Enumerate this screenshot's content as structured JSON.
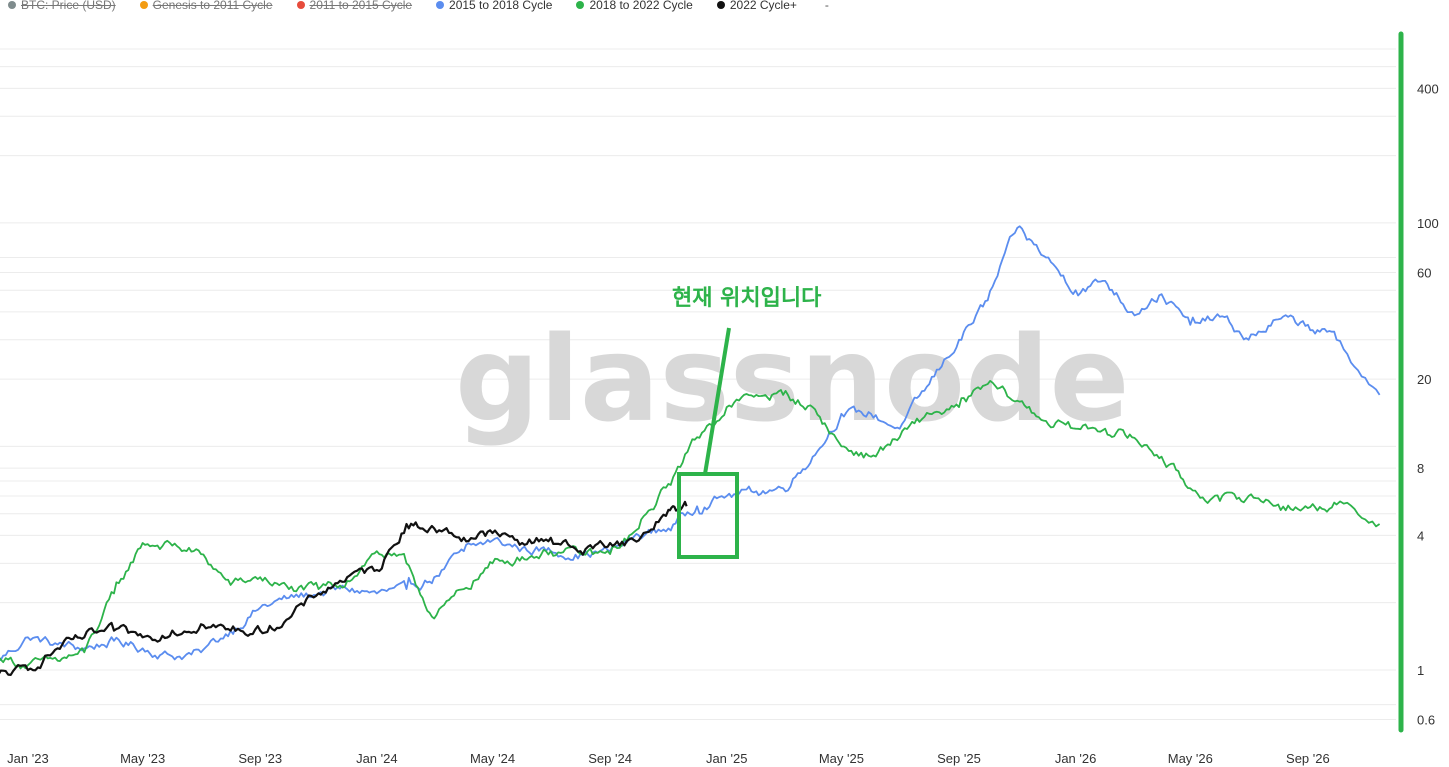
{
  "legend": {
    "items": [
      {
        "label": "BTC: Price (USD)",
        "color": "#7f8c8d",
        "hidden": true
      },
      {
        "label": "Genesis to 2011 Cycle",
        "color": "#f39c12",
        "hidden": true
      },
      {
        "label": "2011 to 2015 Cycle",
        "color": "#e74c3c",
        "hidden": true
      },
      {
        "label": "2015 to 2018 Cycle",
        "color": "#5b8def",
        "hidden": false
      },
      {
        "label": "2018 to 2022 Cycle",
        "color": "#2db34a",
        "hidden": false
      },
      {
        "label": "2022 Cycle+",
        "color": "#111111",
        "hidden": false
      }
    ],
    "extra": "-"
  },
  "watermark": "glassnode",
  "annotation": {
    "text": "현재 위치입니다",
    "color": "#2db34a"
  },
  "chart_data": {
    "type": "line",
    "yscale": "log",
    "ylim": [
      0.55,
      700
    ],
    "x_axis": {
      "ticks": [
        "Jan '23",
        "May '23",
        "Sep '23",
        "Jan '24",
        "May '24",
        "Sep '24",
        "Jan '25",
        "May '25",
        "Sep '25",
        "Jan '26",
        "May '26",
        "Sep '26"
      ]
    },
    "y_axis": {
      "ticks": [
        0.6,
        1,
        4,
        8,
        20,
        60,
        100,
        400
      ],
      "tick_labels": [
        "0.6",
        "1",
        "4",
        "8",
        "20",
        "60",
        "100",
        "400"
      ]
    },
    "series": [
      {
        "name": "2015 to 2018 Cycle",
        "color": "#5b8def",
        "x": [
          "2022-12-01",
          "2023-01-01",
          "2023-02-01",
          "2023-03-01",
          "2023-04-01",
          "2023-05-01",
          "2023-06-01",
          "2023-07-01",
          "2023-08-01",
          "2023-09-01",
          "2023-10-01",
          "2023-11-01",
          "2023-12-01",
          "2024-01-01",
          "2024-02-01",
          "2024-03-01",
          "2024-04-01",
          "2024-05-01",
          "2024-06-01",
          "2024-07-01",
          "2024-08-01",
          "2024-09-01",
          "2024-10-01",
          "2024-11-01",
          "2024-12-01",
          "2025-01-01",
          "2025-02-01",
          "2025-03-01",
          "2025-04-01",
          "2025-05-01",
          "2025-06-01",
          "2025-07-01",
          "2025-08-01",
          "2025-09-01",
          "2025-10-01",
          "2025-11-01",
          "2025-12-01",
          "2026-01-01",
          "2026-02-01",
          "2026-03-01",
          "2026-04-01",
          "2026-05-01",
          "2026-06-01",
          "2026-07-01",
          "2026-08-01",
          "2026-09-01",
          "2026-10-01",
          "2026-11-15"
        ],
        "values": [
          1.1,
          1.4,
          1.3,
          1.25,
          1.35,
          1.25,
          1.15,
          1.2,
          1.5,
          1.9,
          2.1,
          2.2,
          2.3,
          2.2,
          2.3,
          2.6,
          3.4,
          3.8,
          3.5,
          3.4,
          3.3,
          3.4,
          4.0,
          4.3,
          5.4,
          6.0,
          6.3,
          6.5,
          9,
          14,
          14,
          12,
          19,
          30,
          45,
          95,
          70,
          50,
          55,
          40,
          48,
          35,
          38,
          30,
          37,
          35,
          30,
          17
        ]
      },
      {
        "name": "2018 to 2022 Cycle",
        "color": "#2db34a",
        "x": [
          "2022-12-01",
          "2023-01-01",
          "2023-02-01",
          "2023-03-01",
          "2023-04-01",
          "2023-05-01",
          "2023-06-01",
          "2023-07-01",
          "2023-08-01",
          "2023-09-01",
          "2023-10-01",
          "2023-11-01",
          "2023-12-01",
          "2024-01-01",
          "2024-02-01",
          "2024-03-01",
          "2024-04-01",
          "2024-05-01",
          "2024-06-01",
          "2024-07-01",
          "2024-08-01",
          "2024-09-01",
          "2024-10-01",
          "2024-11-01",
          "2024-12-01",
          "2025-01-01",
          "2025-02-01",
          "2025-03-01",
          "2025-04-01",
          "2025-05-01",
          "2025-06-01",
          "2025-07-01",
          "2025-08-01",
          "2025-09-01",
          "2025-10-01",
          "2025-11-01",
          "2025-12-01",
          "2026-01-01",
          "2026-02-01",
          "2026-03-01",
          "2026-04-01",
          "2026-05-01",
          "2026-06-01",
          "2026-07-01",
          "2026-08-01",
          "2026-09-01",
          "2026-10-01",
          "2026-11-15"
        ],
        "values": [
          1.15,
          1.05,
          1.1,
          1.2,
          2.2,
          3.7,
          3.6,
          3.3,
          2.4,
          2.6,
          2.3,
          2.3,
          2.5,
          3.4,
          3.0,
          1.7,
          2.3,
          3.0,
          3.2,
          3.4,
          3.3,
          3.3,
          4.3,
          6.8,
          11,
          15,
          17,
          17,
          15,
          10,
          9,
          11,
          14,
          15,
          19,
          16,
          13,
          12,
          12,
          11,
          9,
          6.5,
          5.7,
          6.0,
          5.5,
          5.3,
          5.5,
          4.5
        ]
      },
      {
        "name": "2022 Cycle+",
        "color": "#111111",
        "x": [
          "2022-12-01",
          "2023-01-01",
          "2023-02-01",
          "2023-03-01",
          "2023-04-01",
          "2023-05-01",
          "2023-06-01",
          "2023-07-01",
          "2023-08-01",
          "2023-09-01",
          "2023-10-01",
          "2023-11-01",
          "2023-12-01",
          "2024-01-01",
          "2024-02-01",
          "2024-03-01",
          "2024-04-01",
          "2024-05-01",
          "2024-06-01",
          "2024-07-01",
          "2024-08-01",
          "2024-09-01",
          "2024-10-01",
          "2024-11-01",
          "2024-11-20"
        ],
        "values": [
          0.95,
          1.0,
          1.25,
          1.4,
          1.5,
          1.4,
          1.5,
          1.6,
          1.5,
          1.5,
          1.7,
          2.2,
          2.6,
          2.8,
          4.5,
          4.3,
          3.9,
          4.1,
          3.7,
          3.9,
          3.4,
          3.7,
          3.8,
          5.2,
          5.4
        ]
      }
    ]
  }
}
